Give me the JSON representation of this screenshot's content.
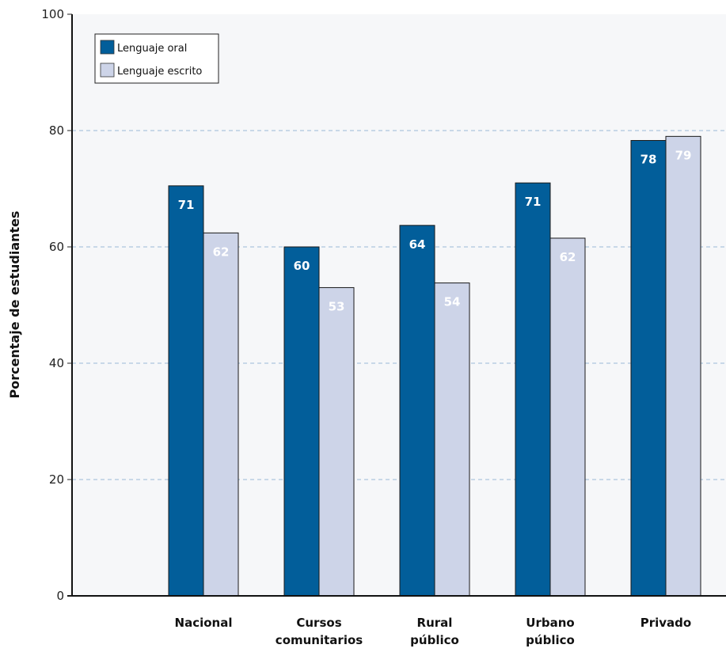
{
  "chart_data": {
    "type": "bar",
    "ylabel": "Porcentaje de estudiantes",
    "ylim": [
      0,
      100
    ],
    "yticks": [
      "0",
      "20",
      "40",
      "60",
      "80",
      "100"
    ],
    "categories": [
      [
        "Nacional"
      ],
      [
        "Cursos",
        "comunitarios"
      ],
      [
        "Rural",
        "público"
      ],
      [
        "Urbano",
        "público"
      ],
      [
        "Privado"
      ]
    ],
    "series": [
      {
        "name": "Lenguaje oral",
        "color": "#025e9a",
        "label_color": "#ffffff",
        "values": [
          70.5,
          60.0,
          63.7,
          71.0,
          78.3
        ],
        "labels": [
          "71",
          "60",
          "64",
          "71",
          "78"
        ]
      },
      {
        "name": "Lenguaje escrito",
        "color": "#cdd4e8",
        "label_color": "#ffffff",
        "values": [
          62.4,
          53.0,
          53.8,
          61.5,
          79.0
        ],
        "labels": [
          "62",
          "53",
          "54",
          "62",
          "79"
        ]
      }
    ],
    "grid": true,
    "grid_color": "#9bbad6",
    "plot_background": "#f6f7f9",
    "legend_position": "top-left"
  }
}
